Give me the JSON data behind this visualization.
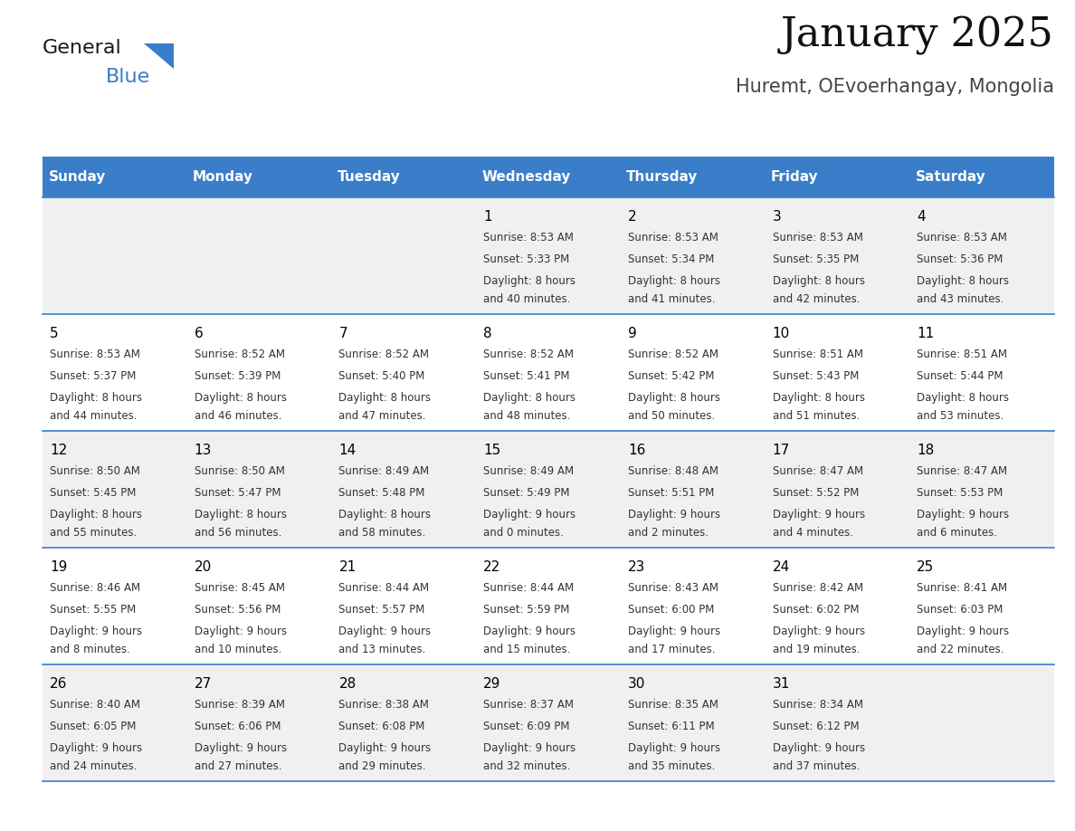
{
  "title": "January 2025",
  "subtitle": "Huremt, OEvoerhangay, Mongolia",
  "header_bg_color": "#3A7DC9",
  "header_text_color": "#FFFFFF",
  "row_bg_even": "#F0F0F0",
  "row_bg_odd": "#FFFFFF",
  "day_number_color": "#000000",
  "info_text_color": "#333333",
  "separator_color": "#3A7DC9",
  "days_of_week": [
    "Sunday",
    "Monday",
    "Tuesday",
    "Wednesday",
    "Thursday",
    "Friday",
    "Saturday"
  ],
  "calendar": [
    [
      {
        "day": "",
        "sunrise": "",
        "sunset": "",
        "daylight_h": "",
        "daylight_m": ""
      },
      {
        "day": "",
        "sunrise": "",
        "sunset": "",
        "daylight_h": "",
        "daylight_m": ""
      },
      {
        "day": "",
        "sunrise": "",
        "sunset": "",
        "daylight_h": "",
        "daylight_m": ""
      },
      {
        "day": "1",
        "sunrise": "8:53 AM",
        "sunset": "5:33 PM",
        "daylight_h": "8",
        "daylight_m": "40"
      },
      {
        "day": "2",
        "sunrise": "8:53 AM",
        "sunset": "5:34 PM",
        "daylight_h": "8",
        "daylight_m": "41"
      },
      {
        "day": "3",
        "sunrise": "8:53 AM",
        "sunset": "5:35 PM",
        "daylight_h": "8",
        "daylight_m": "42"
      },
      {
        "day": "4",
        "sunrise": "8:53 AM",
        "sunset": "5:36 PM",
        "daylight_h": "8",
        "daylight_m": "43"
      }
    ],
    [
      {
        "day": "5",
        "sunrise": "8:53 AM",
        "sunset": "5:37 PM",
        "daylight_h": "8",
        "daylight_m": "44"
      },
      {
        "day": "6",
        "sunrise": "8:52 AM",
        "sunset": "5:39 PM",
        "daylight_h": "8",
        "daylight_m": "46"
      },
      {
        "day": "7",
        "sunrise": "8:52 AM",
        "sunset": "5:40 PM",
        "daylight_h": "8",
        "daylight_m": "47"
      },
      {
        "day": "8",
        "sunrise": "8:52 AM",
        "sunset": "5:41 PM",
        "daylight_h": "8",
        "daylight_m": "48"
      },
      {
        "day": "9",
        "sunrise": "8:52 AM",
        "sunset": "5:42 PM",
        "daylight_h": "8",
        "daylight_m": "50"
      },
      {
        "day": "10",
        "sunrise": "8:51 AM",
        "sunset": "5:43 PM",
        "daylight_h": "8",
        "daylight_m": "51"
      },
      {
        "day": "11",
        "sunrise": "8:51 AM",
        "sunset": "5:44 PM",
        "daylight_h": "8",
        "daylight_m": "53"
      }
    ],
    [
      {
        "day": "12",
        "sunrise": "8:50 AM",
        "sunset": "5:45 PM",
        "daylight_h": "8",
        "daylight_m": "55"
      },
      {
        "day": "13",
        "sunrise": "8:50 AM",
        "sunset": "5:47 PM",
        "daylight_h": "8",
        "daylight_m": "56"
      },
      {
        "day": "14",
        "sunrise": "8:49 AM",
        "sunset": "5:48 PM",
        "daylight_h": "8",
        "daylight_m": "58"
      },
      {
        "day": "15",
        "sunrise": "8:49 AM",
        "sunset": "5:49 PM",
        "daylight_h": "9",
        "daylight_m": "0"
      },
      {
        "day": "16",
        "sunrise": "8:48 AM",
        "sunset": "5:51 PM",
        "daylight_h": "9",
        "daylight_m": "2"
      },
      {
        "day": "17",
        "sunrise": "8:47 AM",
        "sunset": "5:52 PM",
        "daylight_h": "9",
        "daylight_m": "4"
      },
      {
        "day": "18",
        "sunrise": "8:47 AM",
        "sunset": "5:53 PM",
        "daylight_h": "9",
        "daylight_m": "6"
      }
    ],
    [
      {
        "day": "19",
        "sunrise": "8:46 AM",
        "sunset": "5:55 PM",
        "daylight_h": "9",
        "daylight_m": "8"
      },
      {
        "day": "20",
        "sunrise": "8:45 AM",
        "sunset": "5:56 PM",
        "daylight_h": "9",
        "daylight_m": "10"
      },
      {
        "day": "21",
        "sunrise": "8:44 AM",
        "sunset": "5:57 PM",
        "daylight_h": "9",
        "daylight_m": "13"
      },
      {
        "day": "22",
        "sunrise": "8:44 AM",
        "sunset": "5:59 PM",
        "daylight_h": "9",
        "daylight_m": "15"
      },
      {
        "day": "23",
        "sunrise": "8:43 AM",
        "sunset": "6:00 PM",
        "daylight_h": "9",
        "daylight_m": "17"
      },
      {
        "day": "24",
        "sunrise": "8:42 AM",
        "sunset": "6:02 PM",
        "daylight_h": "9",
        "daylight_m": "19"
      },
      {
        "day": "25",
        "sunrise": "8:41 AM",
        "sunset": "6:03 PM",
        "daylight_h": "9",
        "daylight_m": "22"
      }
    ],
    [
      {
        "day": "26",
        "sunrise": "8:40 AM",
        "sunset": "6:05 PM",
        "daylight_h": "9",
        "daylight_m": "24"
      },
      {
        "day": "27",
        "sunrise": "8:39 AM",
        "sunset": "6:06 PM",
        "daylight_h": "9",
        "daylight_m": "27"
      },
      {
        "day": "28",
        "sunrise": "8:38 AM",
        "sunset": "6:08 PM",
        "daylight_h": "9",
        "daylight_m": "29"
      },
      {
        "day": "29",
        "sunrise": "8:37 AM",
        "sunset": "6:09 PM",
        "daylight_h": "9",
        "daylight_m": "32"
      },
      {
        "day": "30",
        "sunrise": "8:35 AM",
        "sunset": "6:11 PM",
        "daylight_h": "9",
        "daylight_m": "35"
      },
      {
        "day": "31",
        "sunrise": "8:34 AM",
        "sunset": "6:12 PM",
        "daylight_h": "9",
        "daylight_m": "37"
      },
      {
        "day": "",
        "sunrise": "",
        "sunset": "",
        "daylight_h": "",
        "daylight_m": ""
      }
    ]
  ],
  "logo_text1": "General",
  "logo_text2": "Blue",
  "logo_color1": "#1a1a1a",
  "logo_color2": "#3A7DC9",
  "title_fontsize": 32,
  "subtitle_fontsize": 15,
  "header_fontsize": 11,
  "day_number_fontsize": 11,
  "info_fontsize": 8.5,
  "fig_width": 11.88,
  "fig_height": 9.18,
  "fig_dpi": 100
}
